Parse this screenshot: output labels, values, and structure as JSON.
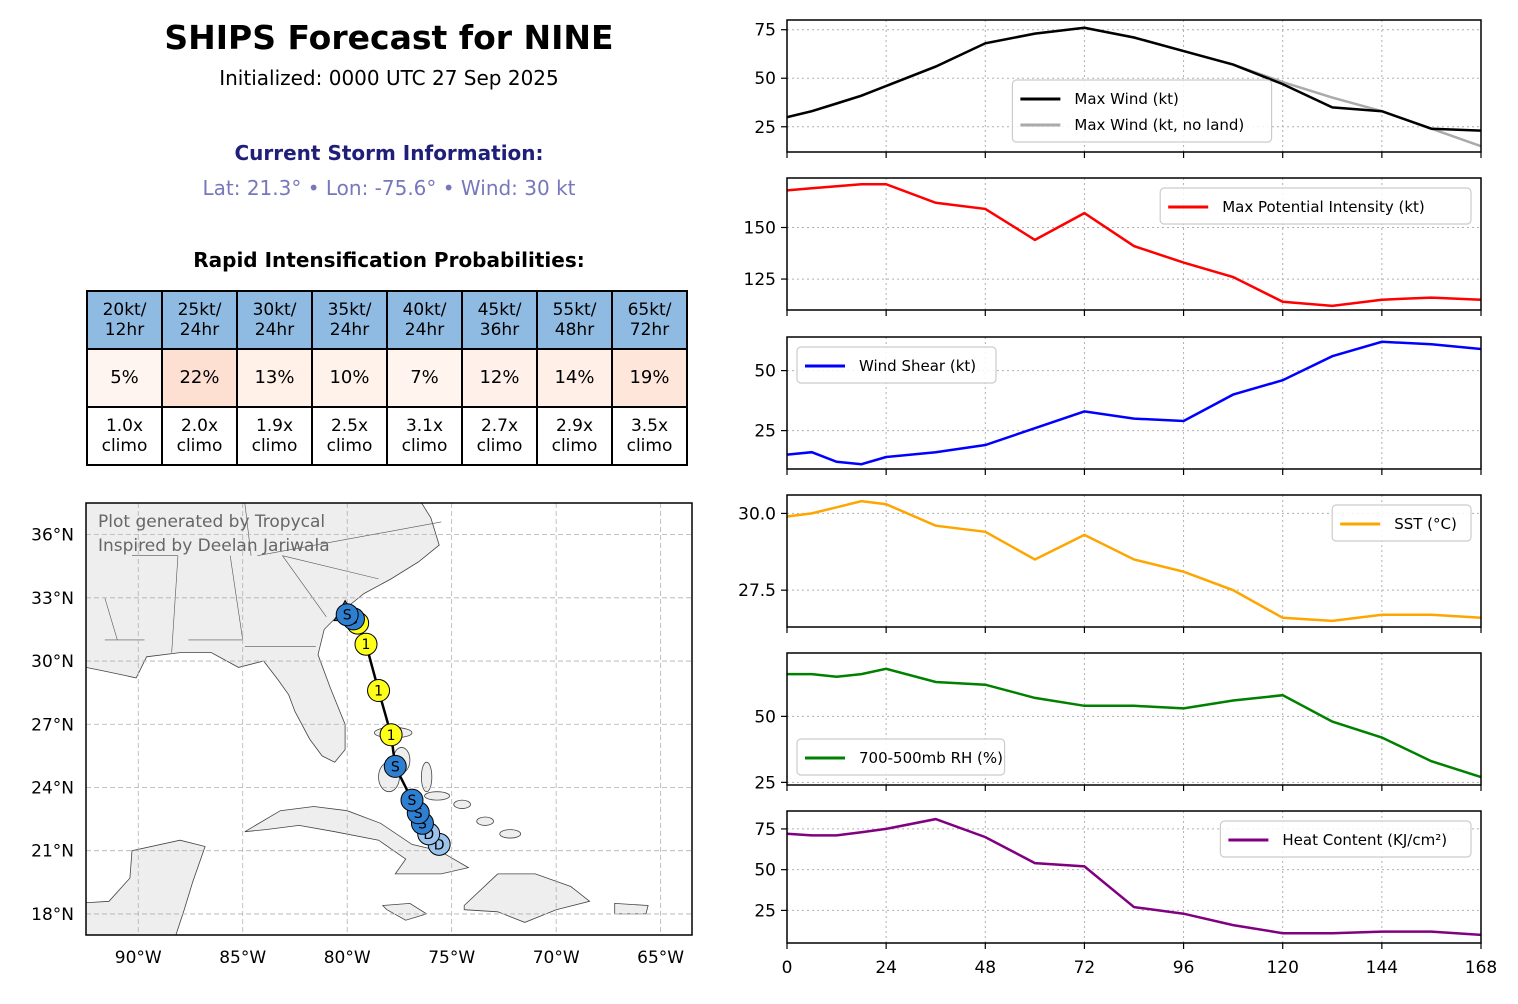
{
  "title": "SHIPS Forecast for NINE",
  "subtitle": "Initialized: 0000 UTC 27 Sep 2025",
  "storm": {
    "header": "Current Storm Information:",
    "info": "Lat: 21.3° • Lon: -75.6° • Wind: 30 kt"
  },
  "ri": {
    "title": "Rapid Intensification Probabilities:",
    "headers": [
      "20kt/\n12hr",
      "25kt/\n24hr",
      "30kt/\n24hr",
      "35kt/\n24hr",
      "40kt/\n24hr",
      "45kt/\n36hr",
      "55kt/\n48hr",
      "65kt/\n72hr"
    ],
    "probs": [
      "5%",
      "22%",
      "13%",
      "10%",
      "7%",
      "12%",
      "14%",
      "19%"
    ],
    "prob_colors": [
      "#fff5f0",
      "#fde0d2",
      "#fff0e8",
      "#fff2eb",
      "#fff4ee",
      "#fff1ea",
      "#ffefe6",
      "#fee6da"
    ],
    "climo": [
      "1.0x\nclimo",
      "2.0x\nclimo",
      "1.9x\nclimo",
      "2.5x\nclimo",
      "3.1x\nclimo",
      "2.7x\nclimo",
      "2.9x\nclimo",
      "3.5x\nclimo"
    ]
  },
  "map": {
    "credit_line1": "Plot generated by Tropycal",
    "credit_line2": "Inspired by Deelan Jariwala",
    "lon_range": [
      -92.5,
      -63.5
    ],
    "lat_range": [
      17.0,
      37.5
    ],
    "lon_ticks": [
      -90,
      -85,
      -80,
      -75,
      -70,
      -65
    ],
    "lon_tick_labels": [
      "90°W",
      "85°W",
      "80°W",
      "75°W",
      "70°W",
      "65°W"
    ],
    "lat_ticks": [
      18,
      21,
      24,
      27,
      30,
      33,
      36
    ],
    "lat_tick_labels": [
      "18°N",
      "21°N",
      "24°N",
      "27°N",
      "30°N",
      "33°N",
      "36°N"
    ],
    "track": [
      {
        "lon": -75.6,
        "lat": 21.3,
        "label": "D",
        "color": "#9cc3ec"
      },
      {
        "lon": -76.1,
        "lat": 21.8,
        "label": "D",
        "color": "#9cc3ec"
      },
      {
        "lon": -76.4,
        "lat": 22.3,
        "label": "S",
        "color": "#2f7fd1"
      },
      {
        "lon": -76.6,
        "lat": 22.8,
        "label": "S",
        "color": "#2f7fd1"
      },
      {
        "lon": -76.9,
        "lat": 23.4,
        "label": "S",
        "color": "#2f7fd1"
      },
      {
        "lon": -77.7,
        "lat": 25.0,
        "label": "S",
        "color": "#2f7fd1"
      },
      {
        "lon": -77.9,
        "lat": 26.5,
        "label": "1",
        "color": "#ffff1a"
      },
      {
        "lon": -78.5,
        "lat": 28.6,
        "label": "1",
        "color": "#ffff1a"
      },
      {
        "lon": -79.1,
        "lat": 30.8,
        "label": "1",
        "color": "#ffff1a"
      },
      {
        "lon": -79.5,
        "lat": 31.8,
        "label": "1",
        "color": "#ffff1a"
      },
      {
        "lon": -79.7,
        "lat": 32.0,
        "label": "S",
        "color": "#2f7fd1"
      },
      {
        "lon": -80.0,
        "lat": 32.2,
        "label": "S",
        "color": "#2f7fd1"
      }
    ],
    "landfall": {
      "lon": -80.1,
      "lat": 32.3,
      "color": "#2f7fd1"
    }
  },
  "chart_data": [
    {
      "type": "line",
      "x": [
        0,
        6,
        12,
        18,
        24,
        36,
        48,
        60,
        72,
        84,
        96,
        108,
        120,
        132,
        144,
        156,
        168
      ],
      "series": [
        {
          "name": "Max Wind (kt)",
          "color": "#000000",
          "values": [
            30,
            33,
            37,
            41,
            46,
            56,
            68,
            73,
            76,
            71,
            64,
            57,
            47,
            35,
            33,
            24,
            23
          ]
        },
        {
          "name": "Max Wind (kt, no land)",
          "color": "#aaaaaa",
          "values": [
            30,
            33,
            37,
            41,
            46,
            56,
            68,
            73,
            76,
            71,
            64,
            57,
            48,
            40,
            33,
            24,
            15
          ]
        }
      ],
      "ylim": [
        12,
        80
      ],
      "yticks": [
        25,
        50,
        75
      ],
      "legend": "lower-center"
    },
    {
      "type": "line",
      "x": [
        0,
        6,
        12,
        18,
        24,
        36,
        48,
        60,
        72,
        84,
        96,
        108,
        120,
        132,
        144,
        156,
        168
      ],
      "series": [
        {
          "name": "Max Potential Intensity (kt)",
          "color": "#ff0000",
          "values": [
            168,
            169,
            170,
            171,
            171,
            162,
            159,
            144,
            157,
            141,
            133,
            126,
            114,
            112,
            115,
            116,
            115
          ]
        }
      ],
      "ylim": [
        110,
        174
      ],
      "yticks": [
        125,
        150
      ],
      "legend": "upper-right"
    },
    {
      "type": "line",
      "x": [
        0,
        6,
        12,
        18,
        24,
        36,
        48,
        60,
        72,
        84,
        96,
        108,
        120,
        132,
        144,
        156,
        168
      ],
      "series": [
        {
          "name": "Wind Shear (kt)",
          "color": "#0000ff",
          "values": [
            15,
            16,
            12,
            11,
            14,
            16,
            19,
            26,
            33,
            30,
            29,
            40,
            46,
            56,
            62,
            61,
            59
          ]
        }
      ],
      "ylim": [
        9,
        64
      ],
      "yticks": [
        25,
        50
      ],
      "legend": "upper-left"
    },
    {
      "type": "line",
      "x": [
        0,
        6,
        12,
        18,
        24,
        36,
        48,
        60,
        72,
        84,
        96,
        108,
        120,
        132,
        144,
        156,
        168
      ],
      "series": [
        {
          "name": "SST (°C)",
          "color": "#ffa500",
          "values": [
            29.9,
            30.0,
            30.2,
            30.4,
            30.3,
            29.6,
            29.4,
            28.5,
            29.3,
            28.5,
            28.1,
            27.5,
            26.6,
            26.5,
            26.7,
            26.7,
            26.6
          ]
        }
      ],
      "ylim": [
        26.3,
        30.6
      ],
      "yticks": [
        27.5,
        30.0
      ],
      "ytick_labels": [
        "27.5",
        "30.0"
      ],
      "legend": "upper-right"
    },
    {
      "type": "line",
      "x": [
        0,
        6,
        12,
        18,
        24,
        36,
        48,
        60,
        72,
        84,
        96,
        108,
        120,
        132,
        144,
        156,
        168
      ],
      "series": [
        {
          "name": "700-500mb RH (%)",
          "color": "#008000",
          "values": [
            66,
            66,
            65,
            66,
            68,
            63,
            62,
            57,
            54,
            54,
            53,
            56,
            58,
            48,
            42,
            33,
            27
          ]
        }
      ],
      "ylim": [
        24,
        74
      ],
      "yticks": [
        25,
        50
      ],
      "legend": "lower-left"
    },
    {
      "type": "line",
      "x": [
        0,
        6,
        12,
        18,
        24,
        36,
        48,
        60,
        72,
        84,
        96,
        108,
        120,
        132,
        144,
        156,
        168
      ],
      "series": [
        {
          "name": "Heat Content (KJ/cm²)",
          "color": "#800080",
          "values": [
            72,
            71,
            71,
            73,
            75,
            81,
            70,
            54,
            52,
            27,
            23,
            16,
            11,
            11,
            12,
            12,
            10
          ]
        }
      ],
      "ylim": [
        5,
        86
      ],
      "yticks": [
        25,
        50,
        75
      ],
      "legend": "upper-right"
    }
  ],
  "xaxis": {
    "ticks": [
      0,
      24,
      48,
      72,
      96,
      120,
      144,
      168
    ],
    "xlim": [
      0,
      168
    ]
  }
}
